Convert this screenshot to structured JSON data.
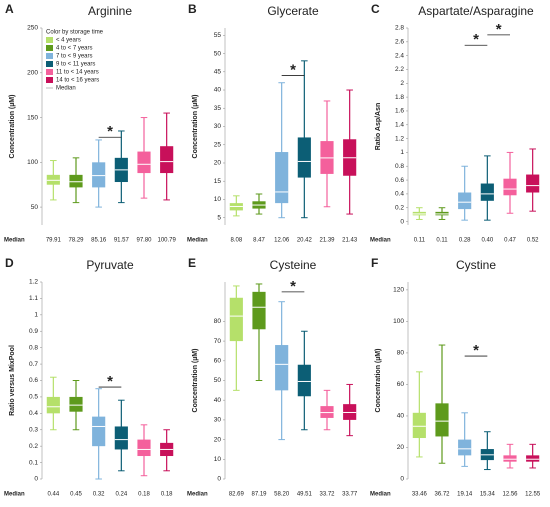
{
  "chart_data": [
    {
      "panel": "A",
      "type": "box",
      "title": "Arginine",
      "ylabel": "Concentration (µM)",
      "ylim": [
        30,
        250
      ],
      "yticks": [
        50,
        100,
        150,
        200,
        250
      ],
      "legend_title": "Color by storage time",
      "median_legend": "Median",
      "series": [
        {
          "name": "< 4 years",
          "color": "#b5e06a"
        },
        {
          "name": "4 to < 7 years",
          "color": "#5e9a1c"
        },
        {
          "name": "7 to < 9 years",
          "color": "#7fb3dc"
        },
        {
          "name": "9 to < 11 years",
          "color": "#0c5e75"
        },
        {
          "name": "11 to < 14 years",
          "color": "#f4609c"
        },
        {
          "name": "14 to < 16 years",
          "color": "#c8105a"
        }
      ],
      "median_row_label": "Median",
      "boxes": [
        {
          "whislo": 58,
          "q1": 75,
          "median": 79.91,
          "q3": 86,
          "whishi": 102
        },
        {
          "whislo": 55,
          "q1": 72,
          "median": 78.29,
          "q3": 86,
          "whishi": 105
        },
        {
          "whislo": 50,
          "q1": 72,
          "median": 85.16,
          "q3": 100,
          "whishi": 125
        },
        {
          "whislo": 55,
          "q1": 78,
          "median": 91.57,
          "q3": 105,
          "whishi": 135
        },
        {
          "whislo": 60,
          "q1": 88,
          "median": 97.8,
          "q3": 112,
          "whishi": 150
        },
        {
          "whislo": 58,
          "q1": 88,
          "median": 100.79,
          "q3": 118,
          "whishi": 155
        }
      ],
      "median_labels": [
        "79.91",
        "78.29",
        "85.16",
        "91.57",
        "97.80",
        "100.79"
      ],
      "annotations": [
        {
          "text": "*",
          "y": 128
        }
      ]
    },
    {
      "panel": "B",
      "type": "box",
      "title": "Glycerate",
      "ylabel": "Concentration (µM)",
      "ylim": [
        3,
        57
      ],
      "yticks": [
        5,
        10,
        15,
        20,
        25,
        30,
        35,
        40,
        45,
        50,
        55
      ],
      "median_row_label": "Median",
      "boxes": [
        {
          "whislo": 5.5,
          "q1": 7,
          "median": 8.08,
          "q3": 9,
          "whishi": 11
        },
        {
          "whislo": 6,
          "q1": 7.5,
          "median": 8.47,
          "q3": 9.5,
          "whishi": 11.5
        },
        {
          "whislo": 5,
          "q1": 9,
          "median": 12.06,
          "q3": 23,
          "whishi": 42
        },
        {
          "whislo": 5,
          "q1": 16,
          "median": 20.42,
          "q3": 27,
          "whishi": 48
        },
        {
          "whislo": 8,
          "q1": 17,
          "median": 21.39,
          "q3": 26,
          "whishi": 37
        },
        {
          "whislo": 6,
          "q1": 16.5,
          "median": 21.43,
          "q3": 26.5,
          "whishi": 40
        }
      ],
      "median_labels": [
        "8.08",
        "8.47",
        "12.06",
        "20.42",
        "21.39",
        "21.43"
      ],
      "annotations": [
        {
          "text": "*",
          "y": 44
        }
      ]
    },
    {
      "panel": "C",
      "type": "box",
      "title": "Aspartate/Asparagine",
      "ylabel": "Ratio Asp/Asn",
      "ylim": [
        -0.05,
        2.8
      ],
      "yticks": [
        0,
        0.2,
        0.4,
        0.6,
        0.8,
        1,
        1.2,
        1.4,
        1.6,
        1.8,
        2,
        2.2,
        2.4,
        2.6,
        2.8
      ],
      "median_row_label": "Median",
      "boxes": [
        {
          "whislo": 0.03,
          "q1": 0.09,
          "median": 0.11,
          "q3": 0.14,
          "whishi": 0.2
        },
        {
          "whislo": 0.03,
          "q1": 0.09,
          "median": 0.11,
          "q3": 0.14,
          "whishi": 0.2
        },
        {
          "whislo": 0.02,
          "q1": 0.18,
          "median": 0.28,
          "q3": 0.42,
          "whishi": 0.8
        },
        {
          "whislo": 0.02,
          "q1": 0.3,
          "median": 0.4,
          "q3": 0.55,
          "whishi": 0.95
        },
        {
          "whislo": 0.12,
          "q1": 0.38,
          "median": 0.47,
          "q3": 0.62,
          "whishi": 1.0
        },
        {
          "whislo": 0.15,
          "q1": 0.42,
          "median": 0.52,
          "q3": 0.68,
          "whishi": 1.05
        }
      ],
      "median_labels": [
        "0.11",
        "0.11",
        "0.28",
        "0.40",
        "0.47",
        "0.52"
      ],
      "annotations": [
        {
          "text": "*",
          "y": 2.55
        },
        {
          "text": "*",
          "y": 2.7
        }
      ]
    },
    {
      "panel": "D",
      "type": "box",
      "title": "Pyruvate",
      "ylabel": "Ratio versus MixPool",
      "ylim": [
        0,
        1.2
      ],
      "yticks": [
        0,
        0.1,
        0.2,
        0.3,
        0.4,
        0.5,
        0.6,
        0.7,
        0.8,
        0.9,
        1,
        1.1,
        1.2
      ],
      "median_row_label": "Median",
      "boxes": [
        {
          "whislo": 0.3,
          "q1": 0.4,
          "median": 0.44,
          "q3": 0.5,
          "whishi": 0.62
        },
        {
          "whislo": 0.3,
          "q1": 0.41,
          "median": 0.45,
          "q3": 0.5,
          "whishi": 0.6
        },
        {
          "whislo": 0,
          "q1": 0.2,
          "median": 0.32,
          "q3": 0.38,
          "whishi": 0.55
        },
        {
          "whislo": 0.05,
          "q1": 0.18,
          "median": 0.24,
          "q3": 0.32,
          "whishi": 0.48
        },
        {
          "whislo": 0.02,
          "q1": 0.14,
          "median": 0.18,
          "q3": 0.24,
          "whishi": 0.33
        },
        {
          "whislo": 0.05,
          "q1": 0.14,
          "median": 0.18,
          "q3": 0.22,
          "whishi": 0.3
        }
      ],
      "median_labels": [
        "0.44",
        "0.45",
        "0.32",
        "0.24",
        "0.18",
        "0.18"
      ],
      "annotations": [
        {
          "text": "*",
          "y": 0.56
        }
      ]
    },
    {
      "panel": "E",
      "type": "box",
      "title": "Cysteine",
      "ylabel": "Concentration (µM)",
      "ylim": [
        0,
        100
      ],
      "yticks": [
        0,
        10,
        20,
        30,
        40,
        50,
        60,
        70,
        80
      ],
      "median_row_label": "Median",
      "boxes": [
        {
          "whislo": 45,
          "q1": 70,
          "median": 82.69,
          "q3": 92,
          "whishi": 98
        },
        {
          "whislo": 50,
          "q1": 76,
          "median": 87.19,
          "q3": 95,
          "whishi": 99
        },
        {
          "whislo": 20,
          "q1": 45,
          "median": 58.2,
          "q3": 68,
          "whishi": 90
        },
        {
          "whislo": 25,
          "q1": 42,
          "median": 49.51,
          "q3": 58,
          "whishi": 75
        },
        {
          "whislo": 25,
          "q1": 31,
          "median": 33.72,
          "q3": 37,
          "whishi": 45
        },
        {
          "whislo": 22,
          "q1": 30,
          "median": 33.77,
          "q3": 38,
          "whishi": 48
        }
      ],
      "median_labels": [
        "82.69",
        "87.19",
        "58.20",
        "49.51",
        "33.72",
        "33.77"
      ],
      "annotations": [
        {
          "text": "*",
          "y": 95
        }
      ]
    },
    {
      "panel": "F",
      "type": "box",
      "title": "Cystine",
      "ylabel": "Concentration (µM)",
      "ylim": [
        0,
        125
      ],
      "yticks": [
        0,
        20,
        40,
        60,
        80,
        100,
        120
      ],
      "median_row_label": "Median",
      "boxes": [
        {
          "whislo": 14,
          "q1": 26,
          "median": 33.46,
          "q3": 42,
          "whishi": 68
        },
        {
          "whislo": 10,
          "q1": 27,
          "median": 36.72,
          "q3": 48,
          "whishi": 85
        },
        {
          "whislo": 8,
          "q1": 15,
          "median": 19.14,
          "q3": 25,
          "whishi": 42
        },
        {
          "whislo": 6,
          "q1": 12,
          "median": 15.34,
          "q3": 19,
          "whishi": 30
        },
        {
          "whislo": 7,
          "q1": 11,
          "median": 12.56,
          "q3": 15,
          "whishi": 22
        },
        {
          "whislo": 7,
          "q1": 11,
          "median": 12.55,
          "q3": 15,
          "whishi": 22
        }
      ],
      "median_labels": [
        "33.46",
        "36.72",
        "19.14",
        "15.34",
        "12.56",
        "12.55"
      ],
      "annotations": [
        {
          "text": "*",
          "y": 78
        }
      ]
    }
  ]
}
